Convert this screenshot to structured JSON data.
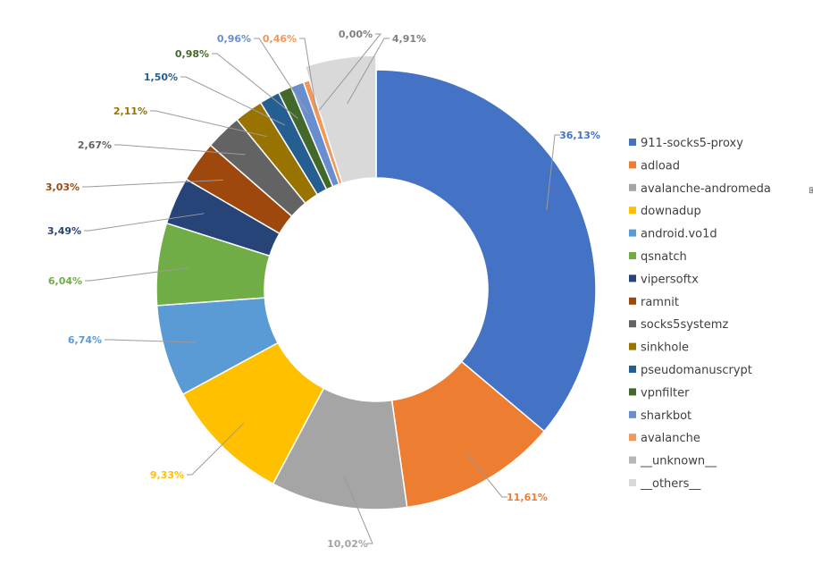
{
  "chart_data": {
    "type": "pie",
    "variant": "donut",
    "title": "",
    "legend_position": "right",
    "decimal_separator": ",",
    "slices": [
      {
        "name": "911-socks5-proxy",
        "value": 36.13,
        "label": "36,13%",
        "color": "#4472C4",
        "label_color": "#4472C4"
      },
      {
        "name": "adload",
        "value": 11.61,
        "label": "11,61%",
        "color": "#ED7D31",
        "label_color": "#ED7D31"
      },
      {
        "name": "avalanche-andromeda",
        "value": 10.02,
        "label": "10,02%",
        "color": "#A5A5A5",
        "label_color": "#A5A5A5"
      },
      {
        "name": "downadup",
        "value": 9.33,
        "label": "9,33%",
        "color": "#FFC000",
        "label_color": "#FFC000"
      },
      {
        "name": "android.vo1d",
        "value": 6.74,
        "label": "6,74%",
        "color": "#5B9BD5",
        "label_color": "#5B9BD5"
      },
      {
        "name": "qsnatch",
        "value": 6.04,
        "label": "6,04%",
        "color": "#70AD47",
        "label_color": "#70AD47"
      },
      {
        "name": "vipersoftx",
        "value": 3.49,
        "label": "3,49%",
        "color": "#264478",
        "label_color": "#264478"
      },
      {
        "name": "ramnit",
        "value": 3.03,
        "label": "3,03%",
        "color": "#9E480E",
        "label_color": "#9E480E"
      },
      {
        "name": "socks5systemz",
        "value": 2.67,
        "label": "2,67%",
        "color": "#636363",
        "label_color": "#636363"
      },
      {
        "name": "sinkhole",
        "value": 2.11,
        "label": "2,11%",
        "color": "#997300",
        "label_color": "#997300"
      },
      {
        "name": "pseudomanuscrypt",
        "value": 1.5,
        "label": "1,50%",
        "color": "#255E91",
        "label_color": "#255E91"
      },
      {
        "name": "vpnfilter",
        "value": 0.98,
        "label": "0,98%",
        "color": "#43682B",
        "label_color": "#43682B"
      },
      {
        "name": "sharkbot",
        "value": 0.96,
        "label": "0,96%",
        "color": "#698ED0",
        "label_color": "#698ED0"
      },
      {
        "name": "avalanche",
        "value": 0.46,
        "label": "0,46%",
        "color": "#F1975A",
        "label_color": "#F1975A"
      },
      {
        "name": "__unknown__",
        "value": 0.0,
        "label": "0,00%",
        "color": "#B7B7B7",
        "label_color": "#7F7F7F"
      },
      {
        "name": "__others__",
        "value": 4.91,
        "label": "4,91%",
        "color": "#D9D9D9",
        "label_color": "#7F7F7F"
      }
    ]
  },
  "side_glyph": "⊞"
}
